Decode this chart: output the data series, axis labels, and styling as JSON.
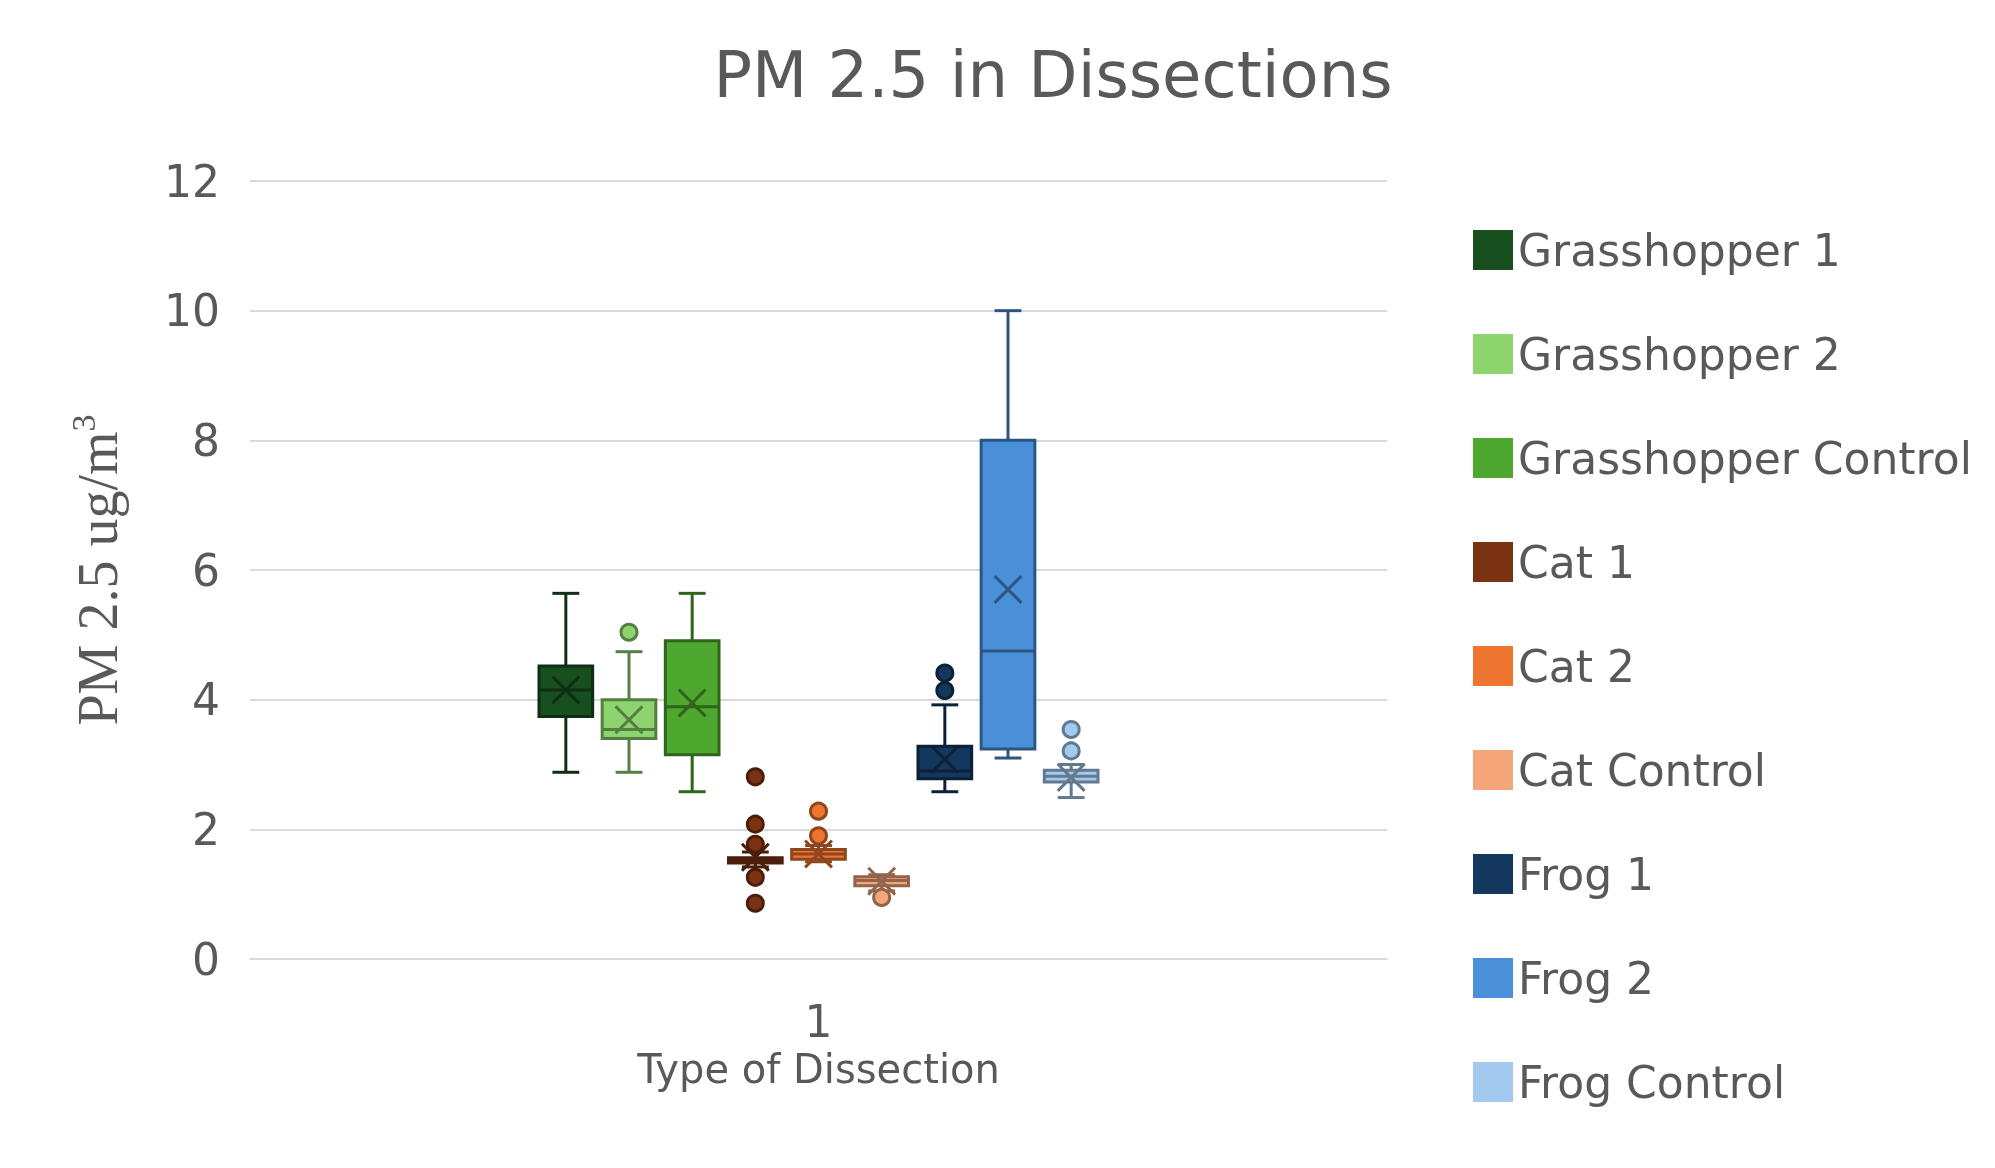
{
  "chart_data": {
    "type": "box",
    "title": "PM 2.5 in Dissections",
    "xlabel": "Type of Dissection",
    "ylabel": "PM 2.5 ug/m$^{3}$",
    "categories": [
      "1"
    ],
    "ylim": [
      0,
      12
    ],
    "yticks": [
      0,
      2,
      4,
      6,
      8,
      10,
      12
    ],
    "grid": "y",
    "legend": "right",
    "series": [
      {
        "name": "Grasshopper 1",
        "color": "#174f1f",
        "boxes": [
          {
            "low": 2.88,
            "q1": 3.74,
            "median": 4.15,
            "q3": 4.52,
            "high": 5.64,
            "mean": 4.15
          }
        ]
      },
      {
        "name": "Grasshopper 2",
        "color": "#8ed46e",
        "boxes": [
          {
            "low": 2.88,
            "q1": 3.4,
            "median": 3.54,
            "q3": 4.0,
            "high": 4.74,
            "mean": 3.69,
            "outliers": [
              5.04
            ]
          }
        ]
      },
      {
        "name": "Grasshopper Control",
        "color": "#4ea72e",
        "boxes": [
          {
            "low": 2.58,
            "q1": 3.15,
            "median": 3.89,
            "q3": 4.91,
            "high": 5.64,
            "mean": 3.95
          }
        ]
      },
      {
        "name": "Cat 1",
        "color": "#7b3210",
        "boxes": [
          {
            "low": 1.42,
            "q1": 1.48,
            "median": 1.52,
            "q3": 1.56,
            "high": 1.65,
            "mean": 1.57,
            "outliers": [
              2.81,
              2.08,
              1.77,
              1.26,
              0.86
            ]
          }
        ]
      },
      {
        "name": "Cat 2",
        "color": "#ee7530",
        "boxes": [
          {
            "low": 1.5,
            "q1": 1.54,
            "median": 1.62,
            "q3": 1.69,
            "high": 1.75,
            "mean": 1.62,
            "outliers": [
              2.28,
              1.9
            ]
          }
        ]
      },
      {
        "name": "Cat Control",
        "color": "#f4a67a",
        "boxes": [
          {
            "low": 1.05,
            "q1": 1.13,
            "median": 1.21,
            "q3": 1.27,
            "high": 1.3,
            "mean": 1.2,
            "outliers": [
              0.95
            ]
          }
        ]
      },
      {
        "name": "Frog 1",
        "color": "#14375e",
        "boxes": [
          {
            "low": 2.58,
            "q1": 2.78,
            "median": 2.9,
            "q3": 3.28,
            "high": 3.92,
            "mean": 3.08,
            "outliers": [
              4.41,
              4.14
            ]
          }
        ]
      },
      {
        "name": "Frog 2",
        "color": "#4a90d9",
        "boxes": [
          {
            "low": 3.1,
            "q1": 3.24,
            "median": 4.75,
            "q3": 8.0,
            "high": 10.0,
            "mean": 5.7
          }
        ]
      },
      {
        "name": "Frog Control",
        "color": "#a3c9ee",
        "boxes": [
          {
            "low": 2.49,
            "q1": 2.73,
            "median": 2.82,
            "q3": 2.91,
            "high": 3.0,
            "mean": 2.8,
            "outliers": [
              3.54,
              3.21
            ]
          }
        ]
      }
    ]
  }
}
